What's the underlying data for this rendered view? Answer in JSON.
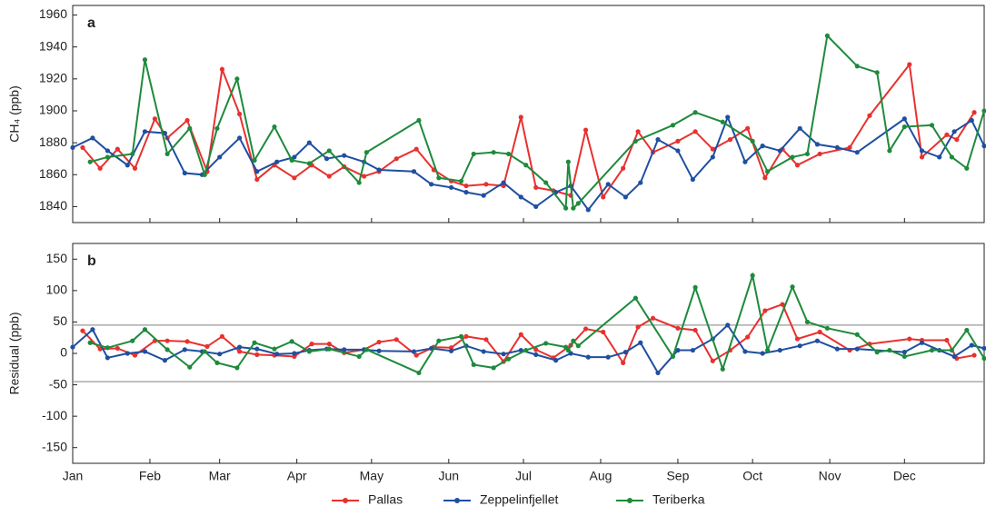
{
  "chart_data": [
    {
      "type": "line",
      "label": "a",
      "ylabel": "CH₄ (ppb)",
      "xlim": [
        0,
        366
      ],
      "ylim": [
        1830,
        1966
      ],
      "yticks": [
        1840,
        1860,
        1880,
        1900,
        1920,
        1940,
        1960
      ],
      "series": [
        {
          "name": "Pallas",
          "color": "#e8312f",
          "x": [
            4,
            11,
            18,
            25,
            33,
            38,
            46,
            54,
            60,
            67,
            74,
            81,
            89,
            96,
            103,
            109,
            117,
            123,
            130,
            138,
            145,
            152,
            158,
            166,
            173,
            180,
            186,
            193,
            200,
            206,
            213,
            221,
            227,
            233,
            243,
            250,
            257,
            264,
            271,
            278,
            285,
            291,
            300,
            312,
            320,
            336,
            341,
            351,
            355,
            362
          ],
          "values": [
            1877,
            1864,
            1876,
            1864,
            1895,
            1883,
            1894,
            1862,
            1926,
            1898,
            1857,
            1866,
            1858,
            1866,
            1859,
            1865,
            1859,
            1862,
            1870,
            1876,
            1863,
            1856,
            1853,
            1854,
            1853,
            1896,
            1852,
            1850,
            1847,
            1888,
            1846,
            1864,
            1887,
            1874,
            1881,
            1887,
            1876,
            1882,
            1889,
            1858,
            1876,
            1866,
            1873,
            1877,
            1897,
            1929,
            1871,
            1885,
            1882,
            1899
          ]
        },
        {
          "name": "Zeppelinfjellet",
          "color": "#1f4fa0",
          "x": [
            0,
            8,
            14,
            22,
            29,
            37,
            45,
            52,
            59,
            67,
            74,
            82,
            89,
            95,
            102,
            109,
            117,
            123,
            137,
            144,
            152,
            158,
            165,
            173,
            180,
            186,
            194,
            200,
            207,
            215,
            222,
            228,
            235,
            243,
            249,
            257,
            263,
            270,
            277,
            284,
            292,
            299,
            307,
            315,
            334,
            341,
            348,
            354,
            361,
            366
          ],
          "values": [
            1877,
            1883,
            1875,
            1866,
            1887,
            1886,
            1861,
            1860,
            1871,
            1883,
            1862,
            1868,
            1871,
            1880,
            1870,
            1872,
            1868,
            1863,
            1862,
            1854,
            1852,
            1849,
            1847,
            1855,
            1846,
            1840,
            1849,
            1853,
            1838,
            1854,
            1846,
            1855,
            1882,
            1875,
            1857,
            1871,
            1896,
            1868,
            1878,
            1875,
            1889,
            1879,
            1877,
            1874,
            1895,
            1875,
            1871,
            1887,
            1894,
            1878
          ]
        },
        {
          "name": "Teriberka",
          "color": "#1e8a3c",
          "x": [
            7,
            14,
            24,
            29,
            38,
            47,
            53,
            58,
            66,
            73,
            81,
            88,
            95,
            103,
            115,
            118,
            139,
            147,
            156,
            161,
            169,
            175,
            182,
            190,
            198,
            199,
            201,
            203,
            226,
            241,
            250,
            261,
            273,
            279,
            289,
            295,
            303,
            315,
            323,
            328,
            334,
            345,
            353,
            359,
            366
          ],
          "values": [
            1868,
            1871,
            1873,
            1932,
            1873,
            1889,
            1860,
            1889,
            1920,
            1869,
            1890,
            1869,
            1867,
            1875,
            1855,
            1874,
            1894,
            1858,
            1856,
            1873,
            1874,
            1873,
            1866,
            1855,
            1839,
            1868,
            1839,
            1842,
            1881,
            1891,
            1899,
            1893,
            1881,
            1862,
            1871,
            1873,
            1947,
            1928,
            1924,
            1875,
            1890,
            1891,
            1871,
            1864,
            1900
          ]
        }
      ]
    },
    {
      "type": "line",
      "label": "b",
      "ylabel": "Residual (ppb)",
      "xlim": [
        0,
        366
      ],
      "ylim": [
        -175,
        175
      ],
      "yticks": [
        -150,
        -100,
        -50,
        0,
        50,
        100,
        150
      ],
      "hlines": [
        45,
        -45
      ],
      "xticks": [
        {
          "value": 0,
          "label": "Jan"
        },
        {
          "value": 31,
          "label": "Feb"
        },
        {
          "value": 59,
          "label": "Mar"
        },
        {
          "value": 90,
          "label": "Apr"
        },
        {
          "value": 120,
          "label": "May"
        },
        {
          "value": 151,
          "label": "Jun"
        },
        {
          "value": 181,
          "label": "Jul"
        },
        {
          "value": 212,
          "label": "Aug"
        },
        {
          "value": 243,
          "label": "Sep"
        },
        {
          "value": 273,
          "label": "Oct"
        },
        {
          "value": 304,
          "label": "Nov"
        },
        {
          "value": 334,
          "label": "Dec"
        }
      ],
      "series": [
        {
          "color": "#e8312f",
          "x": [
            4,
            11,
            18,
            25,
            33,
            38,
            46,
            54,
            60,
            67,
            74,
            81,
            89,
            96,
            103,
            109,
            117,
            123,
            130,
            138,
            145,
            152,
            158,
            166,
            173,
            180,
            186,
            193,
            200,
            206,
            213,
            221,
            227,
            233,
            243,
            250,
            257,
            264,
            271,
            278,
            285,
            291,
            300,
            312,
            320,
            336,
            341,
            351,
            355,
            362
          ],
          "values": [
            36,
            7,
            8,
            -3,
            20,
            20,
            19,
            11,
            27,
            3,
            -2,
            -3,
            -5,
            15,
            15,
            1,
            6,
            18,
            22,
            -3,
            10,
            9,
            27,
            22,
            -13,
            30,
            6,
            -7,
            13,
            39,
            34,
            -15,
            42,
            56,
            40,
            37,
            -12,
            5,
            26,
            68,
            78,
            23,
            34,
            5,
            15,
            23,
            21,
            21,
            -8,
            -3
          ]
        },
        {
          "color": "#1f4fa0",
          "x": [
            0,
            8,
            14,
            22,
            29,
            37,
            45,
            52,
            59,
            67,
            74,
            82,
            89,
            95,
            102,
            109,
            117,
            123,
            137,
            144,
            152,
            158,
            165,
            173,
            180,
            186,
            194,
            200,
            207,
            215,
            222,
            228,
            235,
            243,
            249,
            257,
            263,
            270,
            277,
            284,
            292,
            299,
            307,
            315,
            334,
            341,
            348,
            354,
            361,
            366
          ],
          "values": [
            10,
            38,
            -7,
            0,
            3,
            -11,
            6,
            3,
            -1,
            10,
            7,
            -1,
            0,
            5,
            7,
            6,
            6,
            4,
            3,
            8,
            4,
            12,
            3,
            -1,
            5,
            -2,
            -11,
            0,
            -6,
            -6,
            2,
            17,
            -31,
            5,
            5,
            23,
            45,
            3,
            0,
            5,
            12,
            20,
            7,
            7,
            2,
            17,
            5,
            -5,
            13,
            8
          ]
        },
        {
          "color": "#1e8a3c",
          "x": [
            7,
            14,
            24,
            29,
            38,
            47,
            53,
            58,
            66,
            73,
            81,
            88,
            95,
            103,
            115,
            118,
            139,
            147,
            156,
            161,
            169,
            175,
            182,
            190,
            198,
            199,
            201,
            203,
            226,
            241,
            250,
            261,
            273,
            279,
            289,
            295,
            303,
            315,
            323,
            328,
            334,
            345,
            353,
            359,
            366
          ],
          "values": [
            17,
            9,
            20,
            38,
            6,
            -22,
            3,
            -15,
            -23,
            17,
            7,
            19,
            3,
            7,
            -5,
            6,
            -31,
            20,
            27,
            -18,
            -23,
            -9,
            5,
            16,
            10,
            5,
            20,
            12,
            88,
            -5,
            105,
            -25,
            124,
            5,
            106,
            50,
            40,
            30,
            2,
            5,
            -5,
            5,
            5,
            37,
            -8
          ]
        }
      ]
    }
  ]
}
